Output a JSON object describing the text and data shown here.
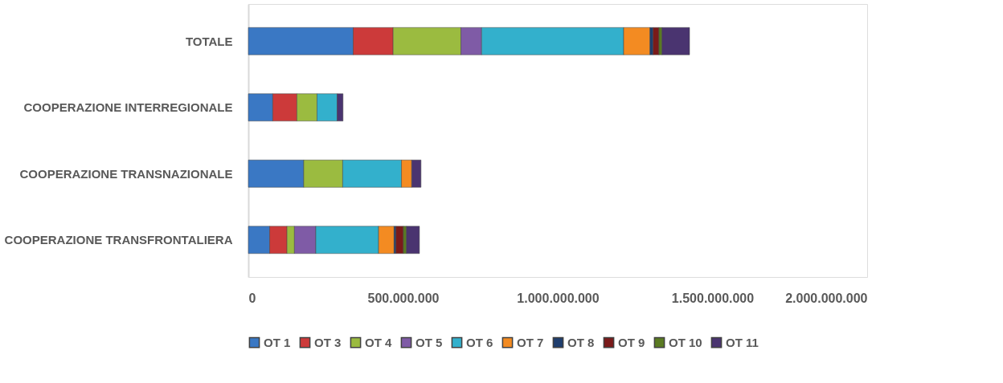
{
  "chart_data": {
    "type": "bar",
    "orientation": "horizontal",
    "stacked": true,
    "categories": [
      "TOTALE",
      "COOPERAZIONE INTERREGIONALE",
      "COOPERAZIONE TRANSNAZIONALE",
      "COOPERAZIONE TRANSFRONTALIERA"
    ],
    "series": [
      {
        "name": "OT 1",
        "color": "#3a78c4",
        "values": [
          339000000,
          79000000,
          179000000,
          69000000
        ]
      },
      {
        "name": "OT 3",
        "color": "#cc3a3a",
        "values": [
          129000000,
          78000000,
          null,
          56000000
        ]
      },
      {
        "name": "OT 4",
        "color": "#9bbb40",
        "values": [
          219000000,
          65000000,
          126000000,
          24000000
        ]
      },
      {
        "name": "OT 5",
        "color": "#7f5ba6",
        "values": [
          67000000,
          null,
          null,
          69000000
        ]
      },
      {
        "name": "OT 6",
        "color": "#33b0cc",
        "values": [
          459000000,
          65000000,
          190000000,
          203000000
        ]
      },
      {
        "name": "OT 7",
        "color": "#f38b22",
        "values": [
          85000000,
          null,
          33000000,
          50000000
        ]
      },
      {
        "name": "OT 8",
        "color": "#1f3e6e",
        "values": [
          10000000,
          null,
          null,
          6000000
        ]
      },
      {
        "name": "OT 9",
        "color": "#7a1a1a",
        "values": [
          19000000,
          null,
          null,
          24000000
        ]
      },
      {
        "name": "OT 10",
        "color": "#5a7a22",
        "values": [
          10000000,
          null,
          null,
          10000000
        ]
      },
      {
        "name": "OT 11",
        "color": "#4a3470",
        "values": [
          89000000,
          19000000,
          30000000,
          42000000
        ]
      }
    ],
    "xlim": [
      0,
      2000000000
    ],
    "xticks": [
      0,
      {
        "value": 500000000,
        "label": "500.000.000"
      },
      {
        "value": 1000000000,
        "label": "1.000.000.000"
      },
      {
        "value": 1500000000,
        "label": "1.500.000.000"
      },
      {
        "value": 2000000000,
        "label": "2.000.000.000"
      }
    ],
    "grid": false,
    "legend": "bottom"
  }
}
